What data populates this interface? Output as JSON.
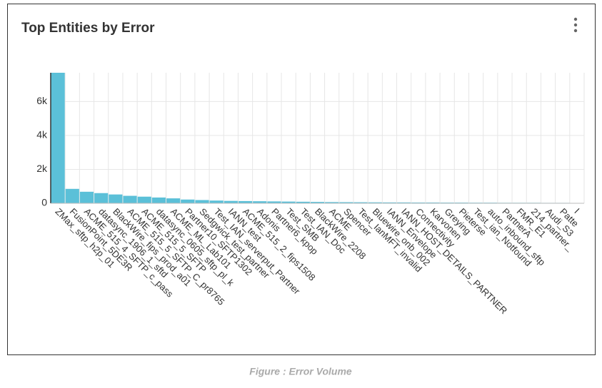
{
  "chart_data": {
    "type": "bar",
    "title": "Top Entities by Error",
    "caption": "Figure : Error Volume",
    "color": "#5bc0d8",
    "categories": [
      "ZMax_sftp_h2p_01",
      "FusionPoint_5DE3R",
      "ACME_515_4_SFTP_c_pass",
      "datasync_1906_1_sftd",
      "BlackWire_fips_prod_a01",
      "ACME_515_5_SFTP_C_pr8765",
      "ACME_515_5_SFTP",
      "datasync_0605_sftp_pl_k",
      "ACME_ML_Lab101",
      "Partner10_SFTP1302",
      "Sedgwick_test_partner",
      "Test_IAN_serverput_Partner",
      "IANN_test",
      "ACME_515_2_fips1508",
      "Adonis",
      "Partner6_kpop",
      "Test_SMB",
      "Test_IAN_Doc",
      "BlackWire_2208",
      "ACME",
      "Spencer",
      "Test_IanMFT_invalid",
      "Bluewire_onb_002",
      "IANN_Envelope",
      "IANN_HOST_DETAILS_PARTNER",
      "Connectivity",
      "Karvonen",
      "Greying",
      "Pieterse",
      "Test_ian_Notfound",
      "auto_inbound_sftp",
      "PartnerA",
      "FMR_E1",
      "214_partner_",
      "Audi_S3",
      "Patte",
      "I"
    ],
    "values": [
      7700,
      850,
      680,
      600,
      520,
      440,
      390,
      340,
      290,
      220,
      190,
      160,
      140,
      130,
      120,
      110,
      100,
      90,
      80,
      70,
      65,
      60,
      55,
      50,
      50,
      45,
      45,
      40,
      40,
      35,
      35,
      30,
      30,
      30,
      25,
      25,
      20
    ],
    "ylim": [
      0,
      7700
    ],
    "yticks": [
      0,
      {
        "value": 2000,
        "label": "2k"
      },
      {
        "value": 4000,
        "label": "4k"
      },
      {
        "value": 6000,
        "label": "6k"
      }
    ],
    "grid": true
  }
}
